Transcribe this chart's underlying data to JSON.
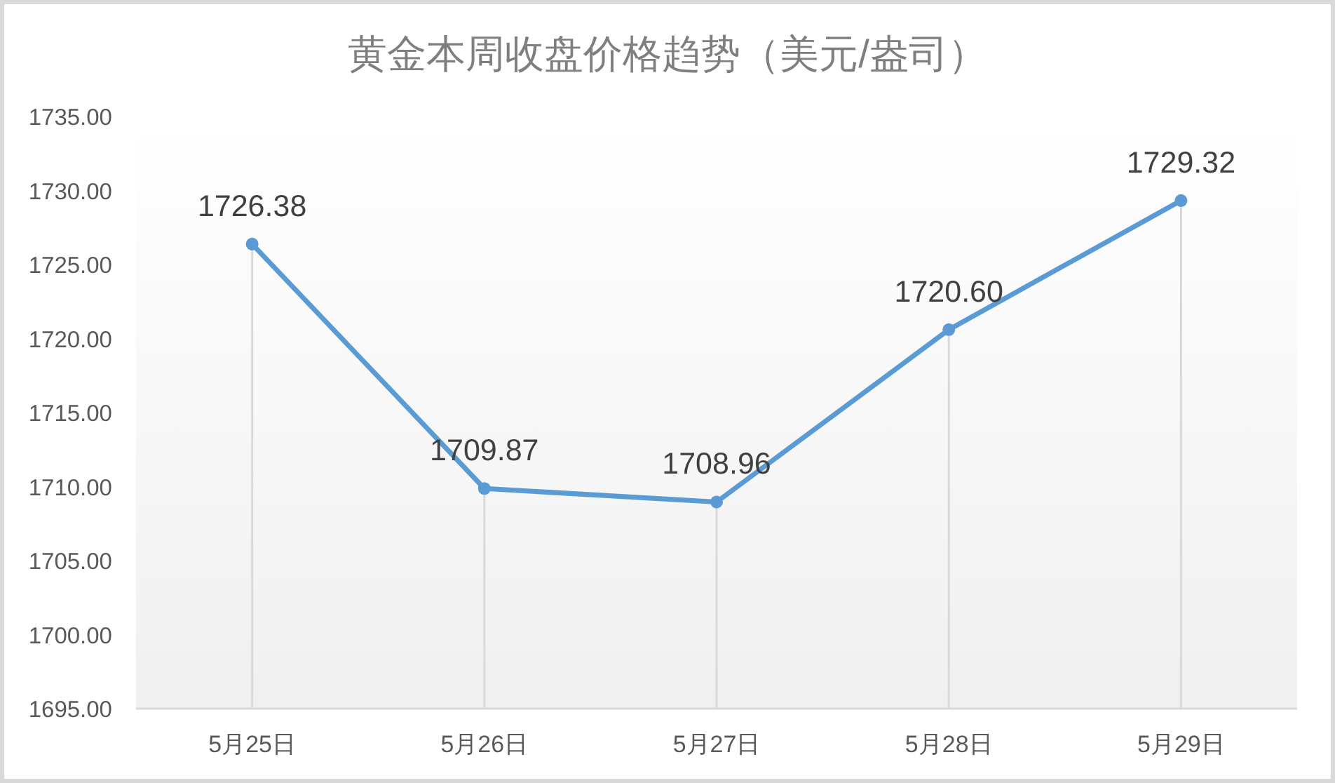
{
  "chart_data": {
    "type": "line",
    "title": "黄金本周收盘价格趋势（美元/盎司）",
    "categories": [
      "5月25日",
      "5月26日",
      "5月27日",
      "5月28日",
      "5月29日"
    ],
    "series": [
      {
        "color": "#5b9bd5",
        "values": [
          1726.38,
          1709.87,
          1708.96,
          1720.6,
          1729.32
        ],
        "value_labels": [
          "1726.38",
          "1709.87",
          "1708.96",
          "1720.60",
          "1729.32"
        ]
      }
    ],
    "ylim": [
      1695,
      1735
    ],
    "yticks": [
      {
        "value": 1695,
        "label": "1695.00"
      },
      {
        "value": 1700,
        "label": "1700.00"
      },
      {
        "value": 1705,
        "label": "1705.00"
      },
      {
        "value": 1710,
        "label": "1710.00"
      },
      {
        "value": 1715,
        "label": "1715.00"
      },
      {
        "value": 1720,
        "label": "1720.00"
      },
      {
        "value": 1725,
        "label": "1725.00"
      },
      {
        "value": 1730,
        "label": "1730.00"
      },
      {
        "value": 1735,
        "label": "1735.00"
      }
    ],
    "grid": "x",
    "marker": "circle",
    "line_style": "solid"
  }
}
